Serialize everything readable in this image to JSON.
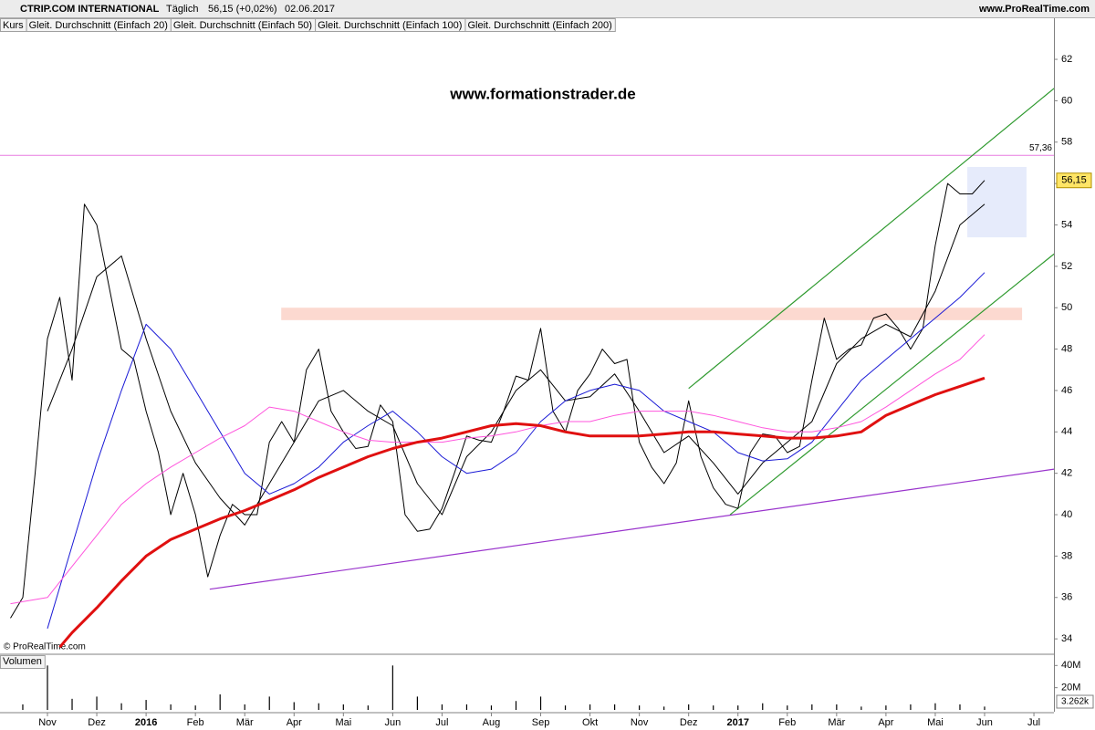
{
  "chart_data": {
    "type": "line",
    "title": "CTRIP.COM INTERNATIONAL",
    "interval": "Täglich",
    "quote": "56,15 (+0,02%)",
    "date": "02.06.2017",
    "source": "www.ProRealTime.com",
    "watermark": "www.formationstrader.de",
    "copyright": "© ProRealTime.com",
    "xlim": [
      -0.962,
      20.406
    ],
    "xticks": [
      {
        "value": 0,
        "label": "Nov"
      },
      {
        "value": 1,
        "label": "Dez"
      },
      {
        "value": 2,
        "label": "2016"
      },
      {
        "value": 3,
        "label": "Feb"
      },
      {
        "value": 4,
        "label": "Mär"
      },
      {
        "value": 5,
        "label": "Apr"
      },
      {
        "value": 6,
        "label": "Mai"
      },
      {
        "value": 7,
        "label": "Jun"
      },
      {
        "value": 8,
        "label": "Jul"
      },
      {
        "value": 9,
        "label": "Aug"
      },
      {
        "value": 10,
        "label": "Sep"
      },
      {
        "value": 11,
        "label": "Okt"
      },
      {
        "value": 12,
        "label": "Nov"
      },
      {
        "value": 13,
        "label": "Dez"
      },
      {
        "value": 14,
        "label": "2017"
      },
      {
        "value": 15,
        "label": "Feb"
      },
      {
        "value": 16,
        "label": "Mär"
      },
      {
        "value": 17,
        "label": "Apr"
      },
      {
        "value": 18,
        "label": "Mai"
      },
      {
        "value": 19,
        "label": "Jun"
      },
      {
        "value": 20,
        "label": "Jul"
      }
    ],
    "ylim": [
      33.3,
      63.28
    ],
    "yticks": [
      34,
      36,
      38,
      40,
      42,
      44,
      46,
      48,
      50,
      52,
      54,
      56,
      58,
      60,
      62
    ],
    "last_price": {
      "value": 56.15,
      "label": "56,15",
      "color": "#ffe566"
    },
    "series": [
      {
        "name": "Kurs",
        "color": "#000000",
        "width": 1,
        "x": [
          -0.75,
          -0.5,
          -0.25,
          0,
          0.25,
          0.5,
          0.75,
          1,
          1.25,
          1.5,
          1.75,
          2,
          2.25,
          2.5,
          2.75,
          3,
          3.25,
          3.5,
          3.75,
          4,
          4.25,
          4.5,
          4.75,
          5,
          5.25,
          5.5,
          5.75,
          6,
          6.25,
          6.5,
          6.75,
          7,
          7.25,
          7.5,
          7.75,
          8,
          8.25,
          8.5,
          8.75,
          9,
          9.25,
          9.5,
          9.75,
          10,
          10.25,
          10.5,
          10.75,
          11,
          11.25,
          11.5,
          11.75,
          12,
          12.25,
          12.5,
          12.75,
          13,
          13.25,
          13.5,
          13.75,
          14,
          14.25,
          14.5,
          14.75,
          15,
          15.25,
          15.5,
          15.75,
          16,
          16.25,
          16.5,
          16.75,
          17,
          17.25,
          17.5,
          17.75,
          18,
          18.25,
          18.5,
          18.75,
          19
        ],
        "values": [
          35,
          36,
          42,
          48.5,
          50.5,
          46.5,
          55,
          54,
          51,
          48,
          47.5,
          45,
          43,
          40,
          42,
          40,
          37,
          39,
          40.5,
          40,
          40,
          43.5,
          44.5,
          43.5,
          47,
          48,
          45,
          44,
          43.2,
          43.3,
          45.3,
          44.5,
          40,
          39.2,
          39.3,
          40.3,
          42,
          43.8,
          43.6,
          43.5,
          45,
          46.7,
          46.5,
          49,
          45,
          44,
          46,
          46.8,
          48,
          47.3,
          47.5,
          43.5,
          42.3,
          41.5,
          42.5,
          45.5,
          42.8,
          41.3,
          40.5,
          40.3,
          43,
          43.9,
          43.8,
          43,
          43.3,
          46.5,
          49.5,
          47.5,
          48,
          48.2,
          49.5,
          49.7,
          49,
          48,
          49,
          53,
          56,
          55.5,
          55.5,
          56.15
        ]
      },
      {
        "name": "Gleit. Durchschnitt (Einfach 20)",
        "color": "#000000",
        "width": 1,
        "x": [
          0,
          0.5,
          1,
          1.5,
          2,
          2.5,
          3,
          3.5,
          4,
          4.5,
          5,
          5.5,
          6,
          6.5,
          7,
          7.5,
          8,
          8.5,
          9,
          9.5,
          10,
          10.5,
          11,
          11.5,
          12,
          12.5,
          13,
          13.5,
          14,
          14.5,
          15,
          15.5,
          16,
          16.5,
          17,
          17.5,
          18,
          18.5,
          19
        ],
        "values": [
          45,
          48,
          51.5,
          52.5,
          48.5,
          45,
          42.5,
          40.8,
          39.5,
          41.5,
          43.5,
          45.5,
          46,
          45,
          44.3,
          41.5,
          40,
          42.8,
          44,
          46,
          47,
          45.5,
          45.7,
          46.8,
          45,
          43,
          43.8,
          42.5,
          41,
          42.5,
          43.5,
          44.5,
          47.3,
          48.5,
          49.2,
          48.6,
          50.8,
          54,
          55
        ]
      },
      {
        "name": "Gleit. Durchschnitt (Einfach 50)",
        "color": "#1a1ad6",
        "width": 1,
        "x": [
          0,
          0.5,
          1,
          1.5,
          2,
          2.5,
          3,
          3.5,
          4,
          4.5,
          5,
          5.5,
          6,
          6.5,
          7,
          7.5,
          8,
          8.5,
          9,
          9.5,
          10,
          10.5,
          11,
          11.5,
          12,
          12.5,
          13,
          13.5,
          14,
          14.5,
          15,
          15.5,
          16,
          16.5,
          17,
          17.5,
          18,
          18.5,
          19
        ],
        "values": [
          34.5,
          38.5,
          42.5,
          46,
          49.2,
          48,
          46,
          44,
          42,
          41,
          41.5,
          42.3,
          43.5,
          44.3,
          45,
          44,
          42.8,
          42,
          42.2,
          43,
          44.5,
          45.5,
          46,
          46.3,
          46,
          45,
          44.5,
          44,
          43,
          42.6,
          42.7,
          43.5,
          45,
          46.5,
          47.5,
          48.5,
          49.5,
          50.5,
          51.7
        ]
      },
      {
        "name": "Gleit. Durchschnitt (Einfach 100)",
        "color": "#ff55dd",
        "width": 1,
        "x": [
          -0.75,
          0,
          0.5,
          1,
          1.5,
          2,
          2.5,
          3,
          3.5,
          4,
          4.5,
          5,
          5.5,
          6,
          6.5,
          7,
          7.5,
          8,
          8.5,
          9,
          9.5,
          10,
          10.5,
          11,
          11.5,
          12,
          12.5,
          13,
          13.5,
          14,
          14.5,
          15,
          15.5,
          16,
          16.5,
          17,
          17.5,
          18,
          18.5,
          19
        ],
        "values": [
          35.7,
          36,
          37.5,
          39,
          40.5,
          41.5,
          42.3,
          43,
          43.7,
          44.3,
          45.2,
          45,
          44.5,
          44,
          43.6,
          43.5,
          43.5,
          43.5,
          43.7,
          43.8,
          44,
          44.3,
          44.5,
          44.5,
          44.8,
          45,
          45,
          45,
          44.8,
          44.5,
          44.2,
          44,
          44,
          44.2,
          44.5,
          45.2,
          46,
          46.8,
          47.5,
          48.7
        ]
      },
      {
        "name": "Gleit. Durchschnitt (Einfach 200)",
        "color": "#e01010",
        "width": 3,
        "x": [
          0.25,
          0.5,
          1,
          1.5,
          2,
          2.5,
          3,
          3.5,
          4,
          4.5,
          5,
          5.5,
          6,
          6.5,
          7,
          7.5,
          8,
          8.5,
          9,
          9.5,
          10,
          10.5,
          11,
          11.5,
          12,
          12.5,
          13,
          13.5,
          14,
          14.5,
          15,
          15.5,
          16,
          16.5,
          17,
          17.5,
          18,
          18.5,
          19
        ],
        "values": [
          33.6,
          34.3,
          35.5,
          36.8,
          38,
          38.8,
          39.3,
          39.8,
          40.2,
          40.7,
          41.2,
          41.8,
          42.3,
          42.8,
          43.2,
          43.5,
          43.7,
          44,
          44.3,
          44.4,
          44.3,
          44,
          43.8,
          43.8,
          43.8,
          43.9,
          44,
          44,
          43.9,
          43.8,
          43.7,
          43.7,
          43.8,
          44,
          44.8,
          45.3,
          45.8,
          46.2,
          46.6
        ]
      }
    ],
    "hline": {
      "value": 57.36,
      "label": "57,36",
      "color": "#e87ae0"
    },
    "zones": [
      {
        "x": [
          4.74,
          19.76
        ],
        "y": [
          49.4,
          50.0
        ],
        "color": "#fcd9d0"
      },
      {
        "x": [
          18.65,
          19.85
        ],
        "y": [
          53.4,
          56.8
        ],
        "color": "#e6ebfb"
      }
    ],
    "trendlines": [
      {
        "x": [
          3.29,
          20.41
        ],
        "y": [
          36.4,
          42.2
        ],
        "color": "#9933cc"
      },
      {
        "x": [
          13.0,
          20.41
        ],
        "y": [
          46.1,
          60.6
        ],
        "color": "#2f9a2f"
      },
      {
        "x": [
          13.84,
          20.41
        ],
        "y": [
          40.0,
          52.6
        ],
        "color": "#2f9a2f"
      }
    ],
    "volume": {
      "title": "Volumen",
      "color": "#000000",
      "x": [
        -0.5,
        0,
        0.5,
        1,
        1.5,
        2,
        2.5,
        3,
        3.5,
        4,
        4.5,
        5,
        5.5,
        6,
        6.5,
        7,
        7.5,
        8,
        8.5,
        9,
        9.5,
        10,
        10.5,
        11,
        11.5,
        12,
        12.5,
        13,
        13.5,
        14,
        14.5,
        15,
        15.5,
        16,
        16.5,
        17,
        17.5,
        18,
        18.5,
        19
      ],
      "values": [
        5,
        40,
        10,
        12,
        6,
        9,
        5,
        4,
        14,
        5,
        12,
        7,
        6,
        5,
        4,
        40,
        12,
        5,
        5,
        4,
        8,
        12,
        4,
        5,
        5,
        4,
        3,
        5,
        4,
        4,
        6,
        4,
        5,
        5,
        3,
        4,
        5,
        6,
        5,
        3
      ],
      "ylim": [
        0,
        46
      ],
      "yticks": [
        {
          "value": 20,
          "label": "20M"
        },
        {
          "value": 40,
          "label": "40M"
        }
      ],
      "last_label": "3.262k"
    }
  }
}
